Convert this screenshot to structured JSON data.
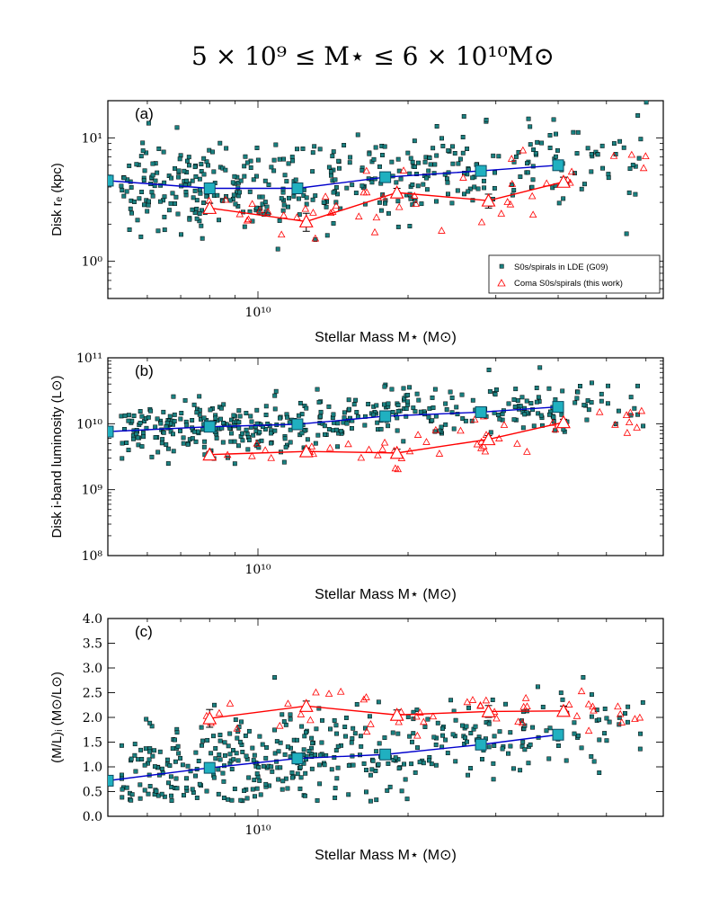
{
  "title": "5 × 10⁹ ≤ M⋆ ≤ 6 × 10¹⁰M⊙",
  "colors": {
    "lde": "#1a8080",
    "lde_edge": "#000000",
    "coma": "#ff0000",
    "blue_line": "#0000cc",
    "square_fill": "#20b0c0"
  },
  "chart_data": [
    {
      "type": "scatter",
      "panel_label": "(a)",
      "xlabel": "Stellar Mass M⋆ (M⊙)",
      "ylabel": "Disk rₑ (kpc)",
      "xscale": "log",
      "yscale": "log",
      "xlim": [
        5000000000.0,
        65000000000.0
      ],
      "ylim": [
        0.5,
        20
      ],
      "x_ticks": [
        {
          "value": 10000000000.0,
          "label": "10¹⁰"
        }
      ],
      "y_ticks": [
        {
          "value": 1,
          "label": "10⁰"
        },
        {
          "value": 10,
          "label": "10¹"
        }
      ],
      "legend": {
        "position": "lower-right",
        "entries": [
          "S0s/spirals in LDE (G09)",
          "Coma S0s/spirals (this work)"
        ]
      },
      "binned_lde": {
        "x": [
          5000000000.0,
          8000000000.0,
          12000000000.0,
          18000000000.0,
          28000000000.0,
          40000000000.0
        ],
        "y": [
          4.5,
          3.9,
          3.9,
          4.8,
          5.4,
          6.0
        ]
      },
      "binned_coma": {
        "x": [
          8000000000.0,
          12500000000.0,
          19000000000.0,
          29000000000.0,
          41000000000.0
        ],
        "y": [
          2.7,
          2.1,
          3.6,
          3.1,
          4.4
        ],
        "err": [
          0.25,
          0.35,
          0.3,
          0.4,
          0.4
        ]
      }
    },
    {
      "type": "scatter",
      "panel_label": "(b)",
      "xlabel": "Stellar Mass M⋆ (M⊙)",
      "ylabel": "Disk i-band luminosity (L⊙)",
      "xscale": "log",
      "yscale": "log",
      "xlim": [
        5000000000.0,
        65000000000.0
      ],
      "ylim": [
        100000000.0,
        100000000000.0
      ],
      "x_ticks": [
        {
          "value": 10000000000.0,
          "label": "10¹⁰"
        }
      ],
      "y_ticks": [
        {
          "value": 100000000.0,
          "label": "10⁸"
        },
        {
          "value": 1000000000.0,
          "label": "10⁹"
        },
        {
          "value": 10000000000.0,
          "label": "10¹⁰"
        },
        {
          "value": 100000000000.0,
          "label": "10¹¹"
        }
      ],
      "binned_lde": {
        "x": [
          5000000000.0,
          8000000000.0,
          12000000000.0,
          18000000000.0,
          28000000000.0,
          40000000000.0
        ],
        "y": [
          7600000000.0,
          9000000000.0,
          9800000000.0,
          13000000000.0,
          15000000000.0,
          18000000000.0
        ]
      },
      "binned_coma": {
        "x": [
          8000000000.0,
          12500000000.0,
          19000000000.0,
          29000000000.0,
          41000000000.0
        ],
        "y": [
          3400000000.0,
          3800000000.0,
          3600000000.0,
          5800000000.0,
          10500000000.0
        ],
        "err": [
          400000000.0,
          500000000.0,
          500000000.0,
          800000000.0,
          1200000000.0
        ]
      }
    },
    {
      "type": "scatter",
      "panel_label": "(c)",
      "xlabel": "Stellar Mass M⋆ (M⊙)",
      "ylabel": "(M/L)ᵢ (M⊙/L⊙)",
      "xscale": "log",
      "yscale": "linear",
      "xlim": [
        5000000000.0,
        65000000000.0
      ],
      "ylim": [
        0.0,
        4.0
      ],
      "x_ticks": [
        {
          "value": 10000000000.0,
          "label": "10¹⁰"
        }
      ],
      "y_ticks": [
        {
          "value": 0.0,
          "label": "0.0"
        },
        {
          "value": 0.5,
          "label": "0.5"
        },
        {
          "value": 1.0,
          "label": "1.0"
        },
        {
          "value": 1.5,
          "label": "1.5"
        },
        {
          "value": 2.0,
          "label": "2.0"
        },
        {
          "value": 2.5,
          "label": "2.5"
        },
        {
          "value": 3.0,
          "label": "3.0"
        },
        {
          "value": 3.5,
          "label": "3.5"
        },
        {
          "value": 4.0,
          "label": "4.0"
        }
      ],
      "binned_lde": {
        "x": [
          5000000000.0,
          8000000000.0,
          12000000000.0,
          18000000000.0,
          28000000000.0,
          40000000000.0
        ],
        "y": [
          0.72,
          0.98,
          1.17,
          1.25,
          1.45,
          1.65
        ]
      },
      "binned_coma": {
        "x": [
          8000000000.0,
          12500000000.0,
          19000000000.0,
          29000000000.0,
          41000000000.0
        ],
        "y": [
          1.98,
          2.23,
          2.05,
          2.12,
          2.13
        ],
        "err": [
          0.18,
          0.1,
          0.1,
          0.12,
          0.1
        ]
      }
    }
  ]
}
